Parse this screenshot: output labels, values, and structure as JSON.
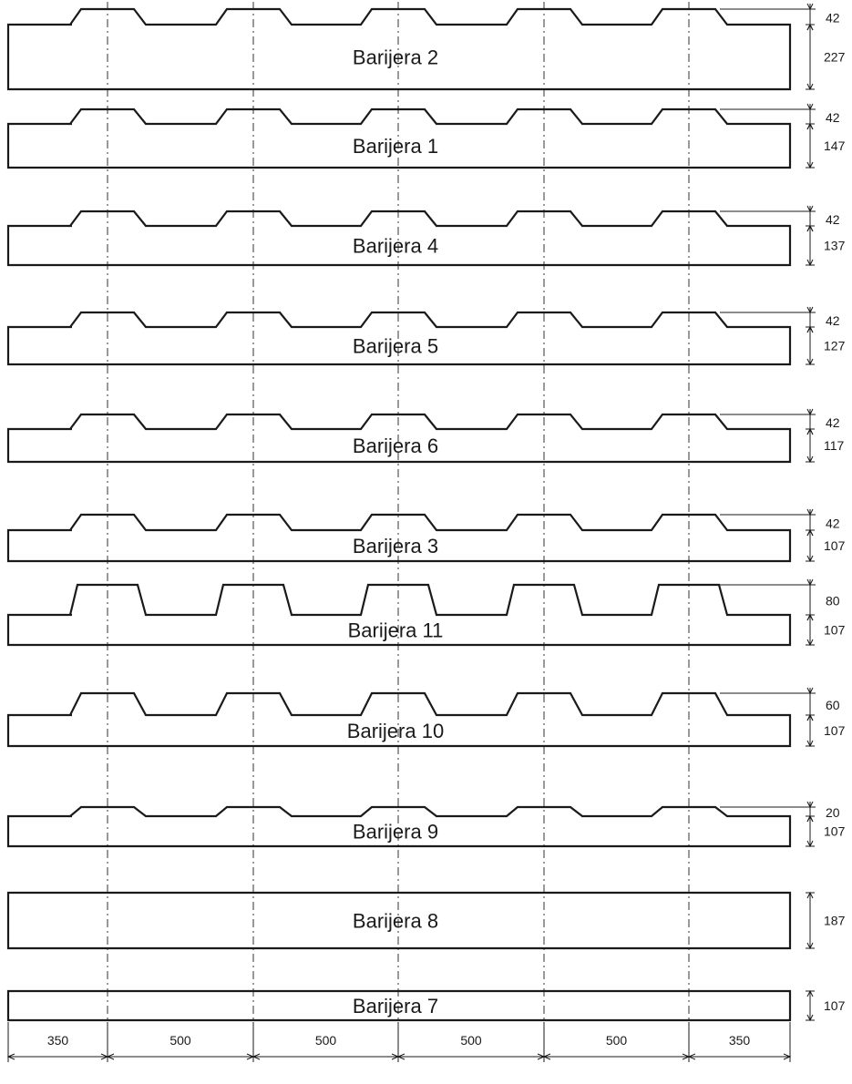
{
  "barriers": [
    {
      "name": "Barijera 2",
      "base_height": "227",
      "peak_height": "42"
    },
    {
      "name": "Barijera 1",
      "base_height": "147",
      "peak_height": "42"
    },
    {
      "name": "Barijera 4",
      "base_height": "137",
      "peak_height": "42"
    },
    {
      "name": "Barijera 5",
      "base_height": "127",
      "peak_height": "42"
    },
    {
      "name": "Barijera 6",
      "base_height": "117",
      "peak_height": "42"
    },
    {
      "name": "Barijera 3",
      "base_height": "107",
      "peak_height": "42"
    },
    {
      "name": "Barijera 11",
      "base_height": "107",
      "peak_height": "80"
    },
    {
      "name": "Barijera 10",
      "base_height": "107",
      "peak_height": "60"
    },
    {
      "name": "Barijera 9",
      "base_height": "107",
      "peak_height": "20"
    },
    {
      "name": "Barijera 8",
      "base_height": "187",
      "peak_height": null
    },
    {
      "name": "Barijera 7",
      "base_height": "107",
      "peak_height": null
    }
  ],
  "spacing_dimensions": [
    "350",
    "500",
    "500",
    "500",
    "500",
    "350"
  ],
  "colors": {
    "line": "#1a1a1a",
    "background": "#ffffff"
  }
}
